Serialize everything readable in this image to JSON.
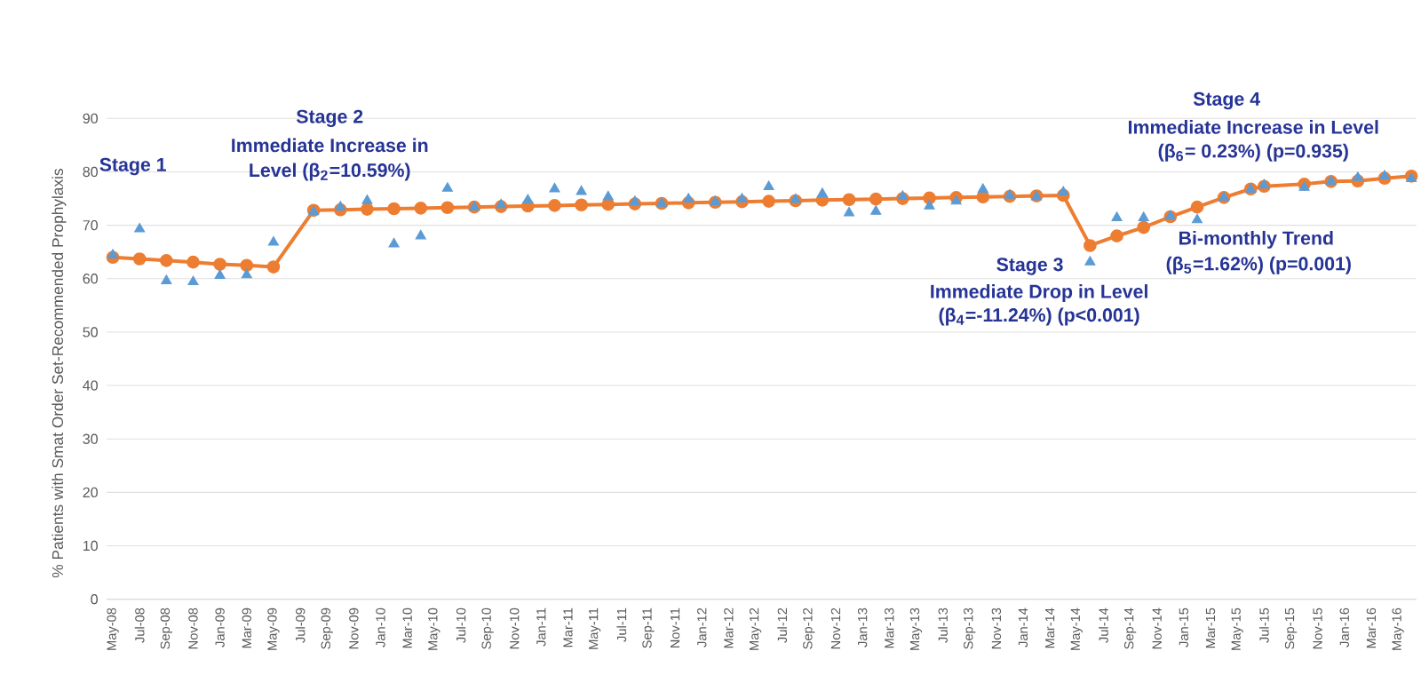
{
  "chart_data": {
    "type": "line",
    "ylabel": "% Patients with Smat Order Set-Recommended Prophylaxis",
    "x": [
      "2008-05",
      "2008-07",
      "2008-09",
      "2008-11",
      "2009-01",
      "2009-03",
      "2009-05",
      "2009-08",
      "2009-10",
      "2009-12",
      "2010-02",
      "2010-04",
      "2010-06",
      "2010-08",
      "2010-10",
      "2010-12",
      "2011-02",
      "2011-04",
      "2011-06",
      "2011-08",
      "2011-10",
      "2011-12",
      "2012-02",
      "2012-04",
      "2012-06",
      "2012-08",
      "2012-10",
      "2012-12",
      "2013-02",
      "2013-04",
      "2013-06",
      "2013-08",
      "2013-10",
      "2013-12",
      "2014-02",
      "2014-04",
      "2014-06",
      "2014-08",
      "2014-10",
      "2014-12",
      "2015-02",
      "2015-04",
      "2015-06",
      "2015-07",
      "2015-10",
      "2015-12",
      "2016-02",
      "2016-04",
      "2016-06"
    ],
    "series": [
      {
        "type": "scatter",
        "color": "#5b9bd5",
        "marker": "triangle",
        "values": [
          64.4,
          69.3,
          59.6,
          59.4,
          60.6,
          60.7,
          66.8,
          72.5,
          73.4,
          74.6,
          66.5,
          68.0,
          76.9,
          73.4,
          73.8,
          74.7,
          76.8,
          76.3,
          75.3,
          74.4,
          74.1,
          74.9,
          74.4,
          74.9,
          77.2,
          74.8,
          75.9,
          72.3,
          72.6,
          75.4,
          73.6,
          74.5,
          76.7,
          75.6,
          75.3,
          76.2,
          63.1,
          71.4,
          71.4,
          71.7,
          71.0,
          75.2,
          76.7,
          77.5,
          77.1,
          78.2,
          78.9,
          79.2,
          78.7
        ]
      },
      {
        "color": "#ed7d31",
        "marker": "circle",
        "line_style": "solid",
        "values": [
          64.0,
          63.7,
          63.4,
          63.1,
          62.7,
          62.5,
          62.2,
          72.8,
          72.9,
          73.0,
          73.1,
          73.2,
          73.3,
          73.4,
          73.5,
          73.6,
          73.7,
          73.8,
          73.9,
          74.0,
          74.1,
          74.2,
          74.3,
          74.4,
          74.5,
          74.6,
          74.7,
          74.8,
          74.9,
          75.0,
          75.1,
          75.2,
          75.3,
          75.4,
          75.5,
          75.6,
          66.2,
          68.0,
          69.6,
          71.6,
          73.4,
          75.2,
          76.8,
          77.3,
          77.7,
          78.2,
          78.3,
          78.8,
          79.2
        ]
      }
    ],
    "xlim": [
      "2008-04-17",
      "2016-06-12"
    ],
    "xticks": [
      {
        "value": "2008-05",
        "label": "May-08"
      },
      {
        "value": "2008-07",
        "label": "Jul-08"
      },
      {
        "value": "2008-09",
        "label": "Sep-08"
      },
      {
        "value": "2008-11",
        "label": "Nov-08"
      },
      {
        "value": "2009-01",
        "label": "Jan-09"
      },
      {
        "value": "2009-03",
        "label": "Mar-09"
      },
      {
        "value": "2009-05",
        "label": "May-09"
      },
      {
        "value": "2009-07",
        "label": "Jul-09"
      },
      {
        "value": "2009-09",
        "label": "Sep-09"
      },
      {
        "value": "2009-11",
        "label": "Nov-09"
      },
      {
        "value": "2010-01",
        "label": "Jan-10"
      },
      {
        "value": "2010-03",
        "label": "Mar-10"
      },
      {
        "value": "2010-05",
        "label": "May-10"
      },
      {
        "value": "2010-07",
        "label": "Jul-10"
      },
      {
        "value": "2010-09",
        "label": "Sep-10"
      },
      {
        "value": "2010-11",
        "label": "Nov-10"
      },
      {
        "value": "2011-01",
        "label": "Jan-11"
      },
      {
        "value": "2011-03",
        "label": "Mar-11"
      },
      {
        "value": "2011-05",
        "label": "May-11"
      },
      {
        "value": "2011-07",
        "label": "Jul-11"
      },
      {
        "value": "2011-09",
        "label": "Sep-11"
      },
      {
        "value": "2011-11",
        "label": "Nov-11"
      },
      {
        "value": "2012-01",
        "label": "Jan-12"
      },
      {
        "value": "2012-03",
        "label": "Mar-12"
      },
      {
        "value": "2012-05",
        "label": "May-12"
      },
      {
        "value": "2012-07",
        "label": "Jul-12"
      },
      {
        "value": "2012-09",
        "label": "Sep-12"
      },
      {
        "value": "2012-11",
        "label": "Nov-12"
      },
      {
        "value": "2013-01",
        "label": "Jan-13"
      },
      {
        "value": "2013-03",
        "label": "Mar-13"
      },
      {
        "value": "2013-05",
        "label": "May-13"
      },
      {
        "value": "2013-07",
        "label": "Jul-13"
      },
      {
        "value": "2013-09",
        "label": "Sep-13"
      },
      {
        "value": "2013-11",
        "label": "Nov-13"
      },
      {
        "value": "2014-01",
        "label": "Jan-14"
      },
      {
        "value": "2014-03",
        "label": "Mar-14"
      },
      {
        "value": "2014-05",
        "label": "May-14"
      },
      {
        "value": "2014-07",
        "label": "Jul-14"
      },
      {
        "value": "2014-09",
        "label": "Sep-14"
      },
      {
        "value": "2014-11",
        "label": "Nov-14"
      },
      {
        "value": "2015-01",
        "label": "Jan-15"
      },
      {
        "value": "2015-03",
        "label": "Mar-15"
      },
      {
        "value": "2015-05",
        "label": "May-15"
      },
      {
        "value": "2015-07",
        "label": "Jul-15"
      },
      {
        "value": "2015-09",
        "label": "Sep-15"
      },
      {
        "value": "2015-11",
        "label": "Nov-15"
      },
      {
        "value": "2016-01",
        "label": "Jan-16"
      },
      {
        "value": "2016-03",
        "label": "Mar-16"
      },
      {
        "value": "2016-05",
        "label": "May-16"
      }
    ],
    "ylim": [
      0,
      90
    ],
    "yticks": [
      0,
      10,
      20,
      30,
      40,
      50,
      60,
      70,
      80,
      90
    ],
    "grid": "y",
    "annotations": [
      "Stage 1",
      "Stage 2",
      "Immediate Increase in",
      "Level (β$_{2}$=10.59%)",
      "Stage 3",
      "Immediate Drop in Level",
      "(β$_{4}$=-11.24%) (p<0.001)",
      "Stage 4",
      "Immediate Increase in Level",
      "(β$_{6}$= 0.23%) (p=0.935)",
      "Bi-monthly Trend",
      "(β$_{5}$=1.62%) (p=0.001)"
    ]
  }
}
